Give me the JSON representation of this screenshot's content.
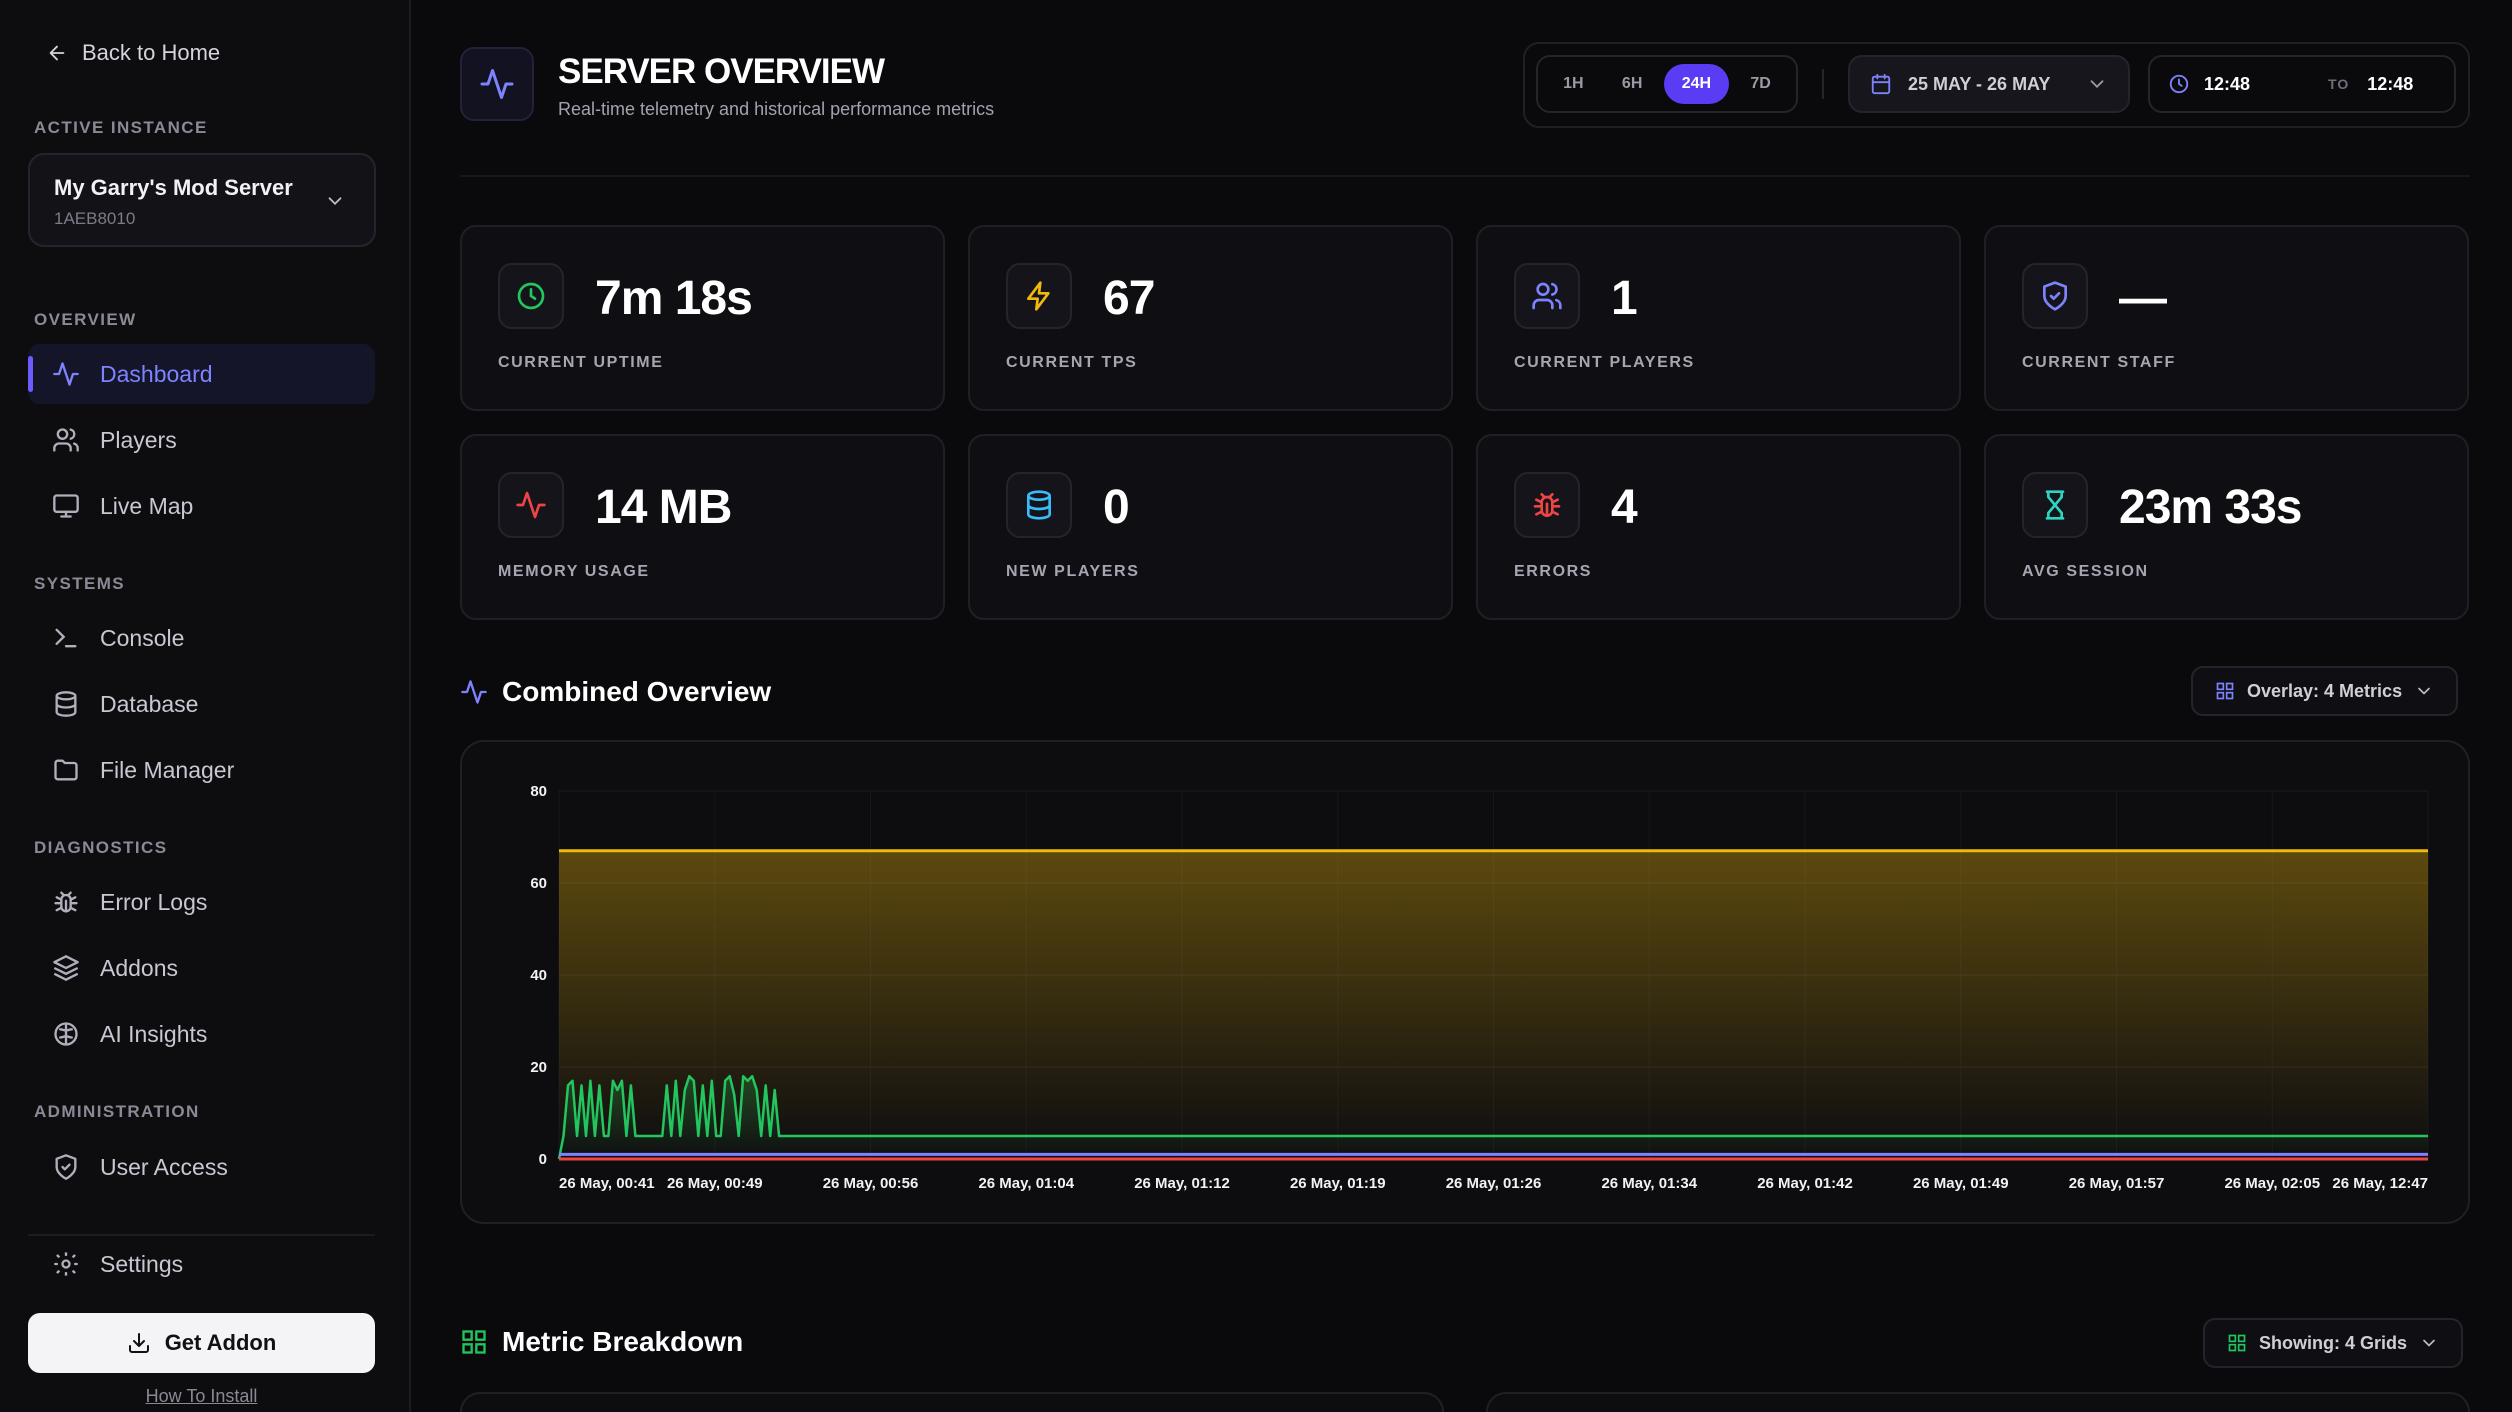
{
  "sidebar": {
    "back_label": "Back to Home",
    "active_instance_label": "ACTIVE INSTANCE",
    "instance": {
      "name": "My Garry's Mod Server",
      "id": "1AEB8010"
    },
    "sections": {
      "overview": "OVERVIEW",
      "systems": "SYSTEMS",
      "diagnostics": "DIAGNOSTICS",
      "administration": "ADMINISTRATION"
    },
    "items": {
      "dashboard": "Dashboard",
      "players": "Players",
      "live_map": "Live Map",
      "console": "Console",
      "database": "Database",
      "file_manager": "File Manager",
      "error_logs": "Error Logs",
      "addons": "Addons",
      "ai_insights": "AI Insights",
      "user_access": "User Access",
      "settings": "Settings"
    },
    "get_addon": "Get Addon",
    "how_to_install": "How To Install"
  },
  "header": {
    "title": "SERVER OVERVIEW",
    "subtitle": "Real-time telemetry and historical performance metrics",
    "ranges": [
      "1H",
      "6H",
      "24H",
      "7D"
    ],
    "active_range": "24H",
    "date_range": "25 MAY - 26 MAY",
    "time_from": "12:48",
    "time_to_label": "TO",
    "time_to": "12:48"
  },
  "stats": {
    "uptime": {
      "value": "7m 18s",
      "label": "CURRENT UPTIME"
    },
    "tps": {
      "value": "67",
      "label": "CURRENT TPS"
    },
    "players": {
      "value": "1",
      "label": "CURRENT PLAYERS"
    },
    "staff": {
      "value": "—",
      "label": "CURRENT STAFF"
    },
    "memory": {
      "value": "14 MB",
      "label": "MEMORY USAGE"
    },
    "new_players": {
      "value": "0",
      "label": "NEW PLAYERS"
    },
    "errors": {
      "value": "4",
      "label": "ERRORS"
    },
    "avg_session": {
      "value": "23m 33s",
      "label": "AVG SESSION"
    }
  },
  "combined": {
    "title": "Combined Overview",
    "overlay_label": "Overlay: 4 Metrics"
  },
  "breakdown": {
    "title": "Metric Breakdown",
    "grids_label": "Showing: 4 Grids"
  },
  "colors": {
    "accent": "#5b3cf5",
    "tps": "#f0b90b",
    "memory": "#22c55e",
    "players": "#7d83ff",
    "errors": "#ef4444"
  },
  "chart_data": {
    "type": "line",
    "title": "Combined Overview",
    "ylim": [
      0,
      80
    ],
    "y_ticks": [
      0,
      20,
      40,
      60,
      80
    ],
    "x_tick_labels": [
      "26 May, 00:41",
      "26 May, 00:49",
      "26 May, 00:56",
      "26 May, 01:04",
      "26 May, 01:12",
      "26 May, 01:19",
      "26 May, 01:26",
      "26 May, 01:34",
      "26 May, 01:42",
      "26 May, 01:49",
      "26 May, 01:57",
      "26 May, 02:05",
      "26 May, 12:47"
    ],
    "grid": true,
    "series": [
      {
        "color": "#f0b90b",
        "fill": true,
        "values": [
          67,
          67,
          67,
          67,
          67,
          67,
          67,
          67,
          67,
          67,
          67,
          67,
          67
        ]
      },
      {
        "color": "#22c55e",
        "values": [
          0,
          5,
          16,
          17,
          5,
          16,
          5,
          17,
          5,
          16,
          5,
          5,
          17,
          15,
          17,
          5,
          16,
          5,
          5,
          5,
          5,
          5,
          5,
          5,
          16,
          5,
          17,
          5,
          15,
          18,
          17,
          5,
          16,
          5,
          17,
          5,
          5,
          17,
          18,
          14,
          5,
          18,
          17,
          18,
          15,
          5,
          16,
          5,
          15,
          5,
          5,
          5,
          5,
          5,
          5,
          5,
          5,
          5,
          5,
          5,
          5,
          5,
          5,
          5,
          5,
          5,
          5,
          5,
          5,
          5,
          5,
          5,
          5,
          5,
          5,
          5,
          5,
          5,
          5,
          5,
          5,
          5,
          5,
          5,
          5,
          5,
          5,
          5,
          5,
          5,
          5,
          5,
          5,
          5,
          5,
          5,
          5,
          5,
          5,
          5,
          5,
          5,
          5,
          5,
          5,
          5,
          5,
          5,
          5,
          5,
          5,
          5,
          5,
          5,
          5,
          5,
          5,
          5,
          5,
          5,
          5,
          5,
          5,
          5,
          5,
          5,
          5,
          5,
          5,
          5,
          5,
          5,
          5,
          5,
          5,
          5,
          5,
          5,
          5,
          5,
          5,
          5,
          5,
          5,
          5,
          5,
          5,
          5,
          5,
          5,
          5,
          5,
          5,
          5,
          5,
          5,
          5,
          5,
          5,
          5,
          5,
          5,
          5,
          5,
          5,
          5,
          5,
          5,
          5,
          5,
          5,
          5,
          5,
          5,
          5,
          5,
          5,
          5,
          5,
          5,
          5,
          5,
          5,
          5,
          5,
          5,
          5,
          5,
          5,
          5,
          5,
          5,
          5,
          5,
          5,
          5,
          5,
          5,
          5,
          5,
          5,
          5,
          5,
          5,
          5,
          5,
          5,
          5,
          5,
          5,
          5,
          5,
          5,
          5,
          5,
          5,
          5,
          5,
          5,
          5,
          5,
          5,
          5,
          5,
          5,
          5,
          5,
          5,
          5,
          5,
          5,
          5,
          5,
          5,
          5,
          5,
          5,
          5,
          5,
          5,
          5,
          5,
          5,
          5,
          5,
          5,
          5,
          5,
          5,
          5,
          5,
          5,
          5,
          5,
          5,
          5,
          5,
          5,
          5,
          5,
          5,
          5,
          5,
          5,
          5,
          5,
          5,
          5,
          5,
          5,
          5,
          5,
          5,
          5,
          5,
          5,
          5,
          5,
          5,
          5,
          5,
          5,
          5,
          5,
          5,
          5,
          5,
          5,
          5,
          5,
          5,
          5,
          5,
          5,
          5,
          5,
          5,
          5,
          5,
          5,
          5,
          5,
          5,
          5,
          5,
          5,
          5,
          5,
          5,
          5,
          5,
          5,
          5,
          5,
          5,
          5,
          5,
          5,
          5,
          5,
          5,
          5,
          5,
          5,
          5,
          5,
          5,
          5,
          5,
          5,
          5,
          5,
          5,
          5,
          5,
          5,
          5,
          5,
          5,
          5,
          5,
          5,
          5,
          5,
          5,
          5,
          5,
          5,
          5,
          5,
          5,
          5,
          5,
          5,
          5,
          5,
          5,
          5,
          5,
          5,
          5,
          5,
          5,
          5,
          5,
          5,
          5,
          5,
          5,
          5,
          5,
          5,
          5,
          5,
          5,
          5,
          5,
          5,
          5,
          5,
          5,
          5,
          5,
          5,
          5,
          5,
          5,
          5,
          5,
          5,
          5,
          5,
          5,
          5,
          5,
          5,
          5,
          5,
          5,
          5,
          5,
          5,
          5,
          5,
          5,
          5,
          5,
          5,
          5,
          5,
          5,
          5,
          5,
          5,
          5,
          5,
          5
        ]
      },
      {
        "color": "#7d83ff",
        "values": [
          1,
          1,
          1,
          1,
          1,
          1,
          1,
          1,
          1,
          1,
          1,
          1,
          1
        ]
      },
      {
        "color": "#ef4444",
        "values": [
          0,
          0,
          0,
          0,
          0,
          0,
          0,
          0,
          0,
          0,
          0,
          0,
          0
        ]
      }
    ]
  }
}
